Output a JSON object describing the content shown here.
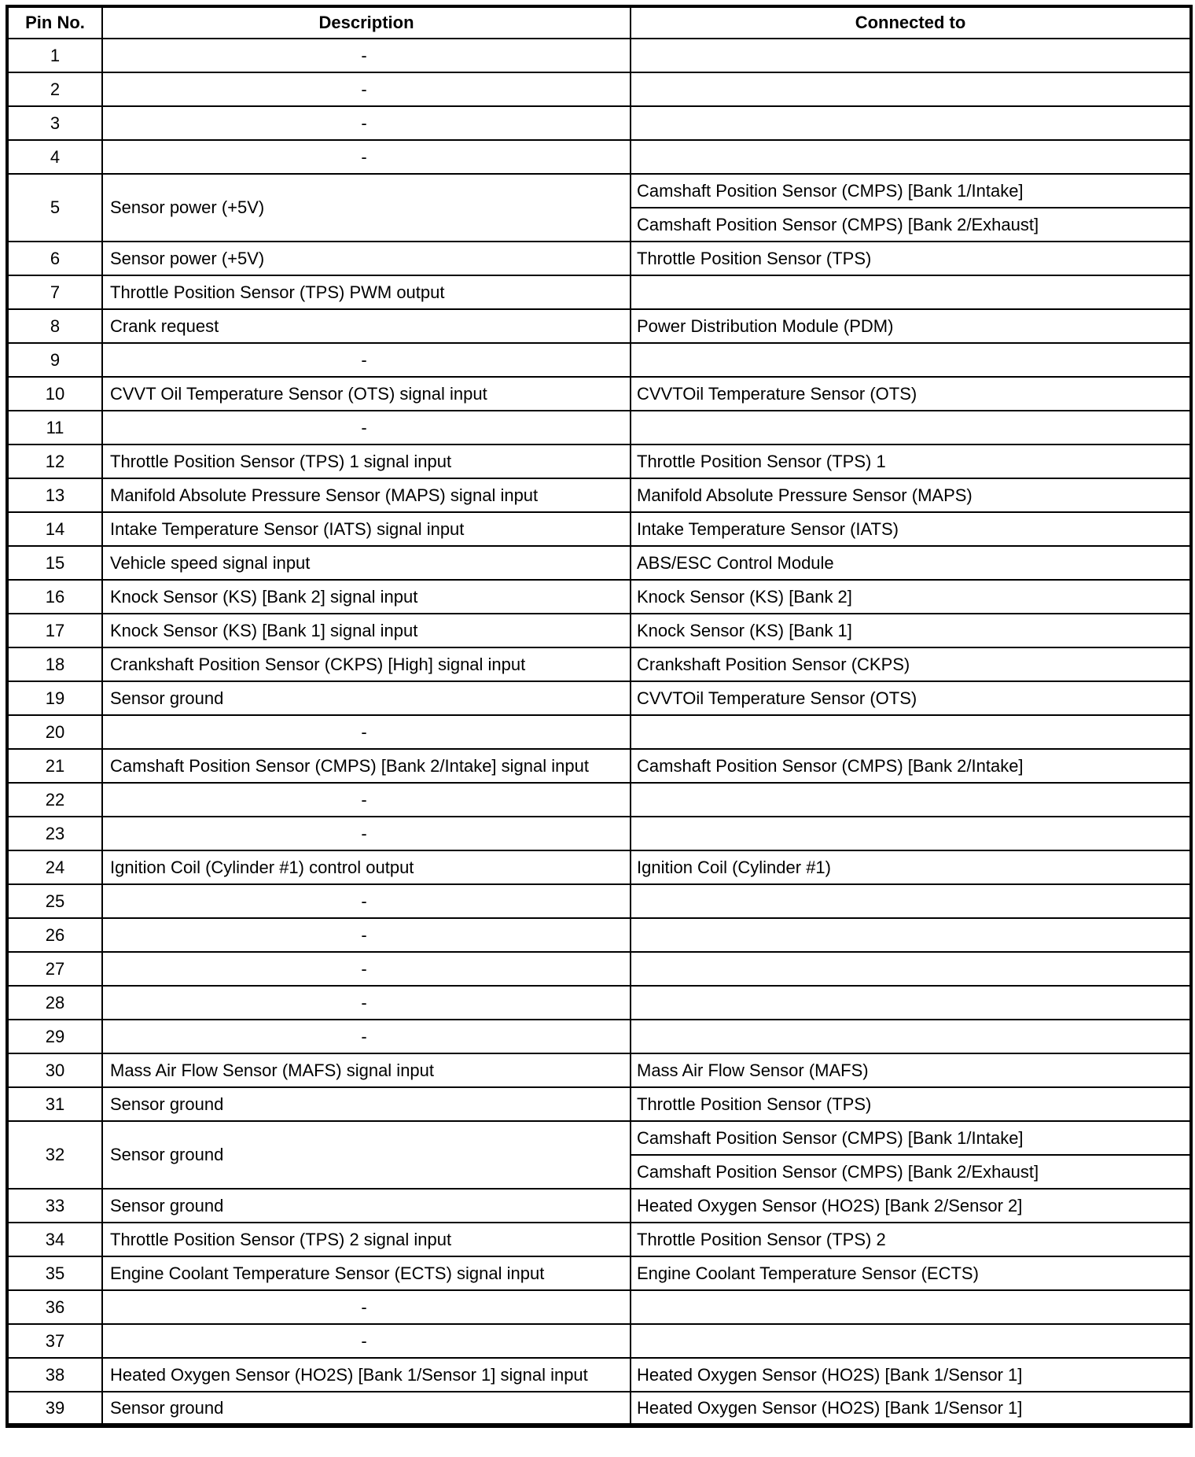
{
  "table": {
    "columns": [
      {
        "label": "Pin No."
      },
      {
        "label": "Description"
      },
      {
        "label": "Connected to"
      }
    ],
    "rows": [
      {
        "pin": "1",
        "description": "-",
        "connected": [
          ""
        ]
      },
      {
        "pin": "2",
        "description": "-",
        "connected": [
          ""
        ]
      },
      {
        "pin": "3",
        "description": "-",
        "connected": [
          ""
        ]
      },
      {
        "pin": "4",
        "description": "-",
        "connected": [
          ""
        ]
      },
      {
        "pin": "5",
        "description": "Sensor power (+5V)",
        "connected": [
          "Camshaft Position Sensor (CMPS) [Bank 1/Intake]",
          "Camshaft Position Sensor (CMPS) [Bank 2/Exhaust]"
        ]
      },
      {
        "pin": "6",
        "description": "Sensor power (+5V)",
        "connected": [
          "Throttle Position Sensor (TPS)"
        ]
      },
      {
        "pin": "7",
        "description": "Throttle Position Sensor (TPS) PWM output",
        "connected": [
          ""
        ]
      },
      {
        "pin": "8",
        "description": "Crank request",
        "connected": [
          "Power Distribution Module (PDM)"
        ]
      },
      {
        "pin": "9",
        "description": "-",
        "connected": [
          ""
        ]
      },
      {
        "pin": "10",
        "description": "CVVT Oil Temperature Sensor (OTS) signal input",
        "connected": [
          "CVVTOil Temperature Sensor (OTS)"
        ]
      },
      {
        "pin": "11",
        "description": "-",
        "connected": [
          ""
        ]
      },
      {
        "pin": "12",
        "description": "Throttle Position Sensor (TPS) 1 signal input",
        "connected": [
          "Throttle Position Sensor (TPS) 1"
        ]
      },
      {
        "pin": "13",
        "description": "Manifold Absolute Pressure Sensor (MAPS) signal input",
        "connected": [
          "Manifold Absolute Pressure Sensor (MAPS)"
        ]
      },
      {
        "pin": "14",
        "description": "Intake Temperature Sensor (IATS) signal input",
        "connected": [
          "Intake Temperature Sensor (IATS)"
        ]
      },
      {
        "pin": "15",
        "description": "Vehicle speed signal input",
        "connected": [
          "ABS/ESC Control Module"
        ]
      },
      {
        "pin": "16",
        "description": "Knock Sensor (KS) [Bank 2] signal input",
        "connected": [
          "Knock Sensor (KS) [Bank 2]"
        ]
      },
      {
        "pin": "17",
        "description": "Knock Sensor (KS) [Bank 1] signal input",
        "connected": [
          "Knock Sensor (KS) [Bank 1]"
        ]
      },
      {
        "pin": "18",
        "description": "Crankshaft Position Sensor (CKPS) [High] signal input",
        "connected": [
          "Crankshaft Position Sensor (CKPS)"
        ]
      },
      {
        "pin": "19",
        "description": "Sensor ground",
        "connected": [
          "CVVTOil Temperature Sensor (OTS)"
        ]
      },
      {
        "pin": "20",
        "description": "-",
        "connected": [
          ""
        ]
      },
      {
        "pin": "21",
        "description": "Camshaft Position Sensor (CMPS) [Bank 2/Intake] signal input",
        "connected": [
          "Camshaft Position Sensor (CMPS) [Bank 2/Intake]"
        ]
      },
      {
        "pin": "22",
        "description": "-",
        "connected": [
          ""
        ]
      },
      {
        "pin": "23",
        "description": "-",
        "connected": [
          ""
        ]
      },
      {
        "pin": "24",
        "description": "Ignition Coil (Cylinder #1) control output",
        "connected": [
          "Ignition Coil (Cylinder #1)"
        ]
      },
      {
        "pin": "25",
        "description": "-",
        "connected": [
          ""
        ]
      },
      {
        "pin": "26",
        "description": "-",
        "connected": [
          ""
        ]
      },
      {
        "pin": "27",
        "description": "-",
        "connected": [
          ""
        ]
      },
      {
        "pin": "28",
        "description": "-",
        "connected": [
          ""
        ]
      },
      {
        "pin": "29",
        "description": "-",
        "connected": [
          ""
        ]
      },
      {
        "pin": "30",
        "description": "Mass Air Flow Sensor (MAFS) signal input",
        "connected": [
          "Mass Air Flow Sensor (MAFS)"
        ]
      },
      {
        "pin": "31",
        "description": "Sensor ground",
        "connected": [
          "Throttle Position Sensor (TPS)"
        ]
      },
      {
        "pin": "32",
        "description": "Sensor ground",
        "connected": [
          "Camshaft Position Sensor (CMPS) [Bank 1/Intake]",
          "Camshaft Position Sensor (CMPS) [Bank 2/Exhaust]"
        ]
      },
      {
        "pin": "33",
        "description": "Sensor ground",
        "connected": [
          "Heated Oxygen Sensor (HO2S) [Bank 2/Sensor 2]"
        ]
      },
      {
        "pin": "34",
        "description": "Throttle Position Sensor (TPS) 2 signal input",
        "connected": [
          "Throttle Position Sensor (TPS) 2"
        ]
      },
      {
        "pin": "35",
        "description": "Engine Coolant Temperature Sensor (ECTS) signal input",
        "connected": [
          "Engine Coolant Temperature Sensor (ECTS)"
        ]
      },
      {
        "pin": "36",
        "description": "-",
        "connected": [
          ""
        ]
      },
      {
        "pin": "37",
        "description": "-",
        "connected": [
          ""
        ]
      },
      {
        "pin": "38",
        "description": "Heated Oxygen Sensor (HO2S) [Bank 1/Sensor 1] signal input",
        "connected": [
          "Heated Oxygen Sensor (HO2S) [Bank 1/Sensor 1]"
        ]
      },
      {
        "pin": "39",
        "description": "Sensor ground",
        "connected": [
          "Heated Oxygen Sensor (HO2S) [Bank 1/Sensor 1]"
        ]
      }
    ]
  },
  "colors": {
    "border": "#000000",
    "background": "#ffffff",
    "text": "#000000"
  }
}
